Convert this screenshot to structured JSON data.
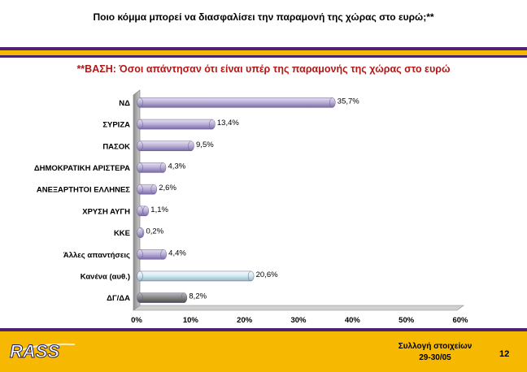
{
  "slide": {
    "title": "Ποιο κόμμα μπορεί να διασφαλίσει την παραμονή της χώρας στο ευρώ;**",
    "subtitle": "**ΒΑΣΗ: Όσοι απάντησαν ότι είναι υπέρ της παραμονής της χώρας στο ευρώ",
    "footer": {
      "logo_text": "RASS",
      "collection_label": "Συλλογή στοιχείων",
      "collection_dates": "29-30/05",
      "page_number": "12"
    },
    "colors": {
      "purple_band": "#4a2472",
      "yellow_band": "#f6b800",
      "subtitle_red": "#b01818"
    }
  },
  "chart_data": {
    "type": "bar",
    "orientation": "horizontal",
    "categories": [
      "ΝΔ",
      "ΣΥΡΙΖΑ",
      "ΠΑΣΟΚ",
      "ΔΗΜΟΚΡΑΤΙΚΗ ΑΡΙΣΤΕΡΑ",
      "ΑΝΕΞΑΡΤΗΤΟΙ ΕΛΛΗΝΕΣ",
      "ΧΡΥΣΗ ΑΥΓΗ",
      "ΚΚΕ",
      "Άλλες απαντήσεις",
      "Κανένα (αυθ.)",
      "ΔΓ/ΔΑ"
    ],
    "values": [
      35.7,
      13.4,
      9.5,
      4.3,
      2.6,
      1.1,
      0.2,
      4.4,
      20.6,
      8.2
    ],
    "value_labels": [
      "35,7%",
      "13,4%",
      "9,5%",
      "4,3%",
      "2,6%",
      "1,1%",
      "0,2%",
      "4,4%",
      "20,6%",
      "8,2%"
    ],
    "bar_colors": [
      "#bdb3d8",
      "#bdb3d8",
      "#bdb3d8",
      "#bdb3d8",
      "#bdb3d8",
      "#bdb3d8",
      "#bdb3d8",
      "#bdb3d8",
      "#d7ecf2",
      "#8a8a8a"
    ],
    "x_ticks": [
      "0%",
      "10%",
      "20%",
      "30%",
      "40%",
      "50%",
      "60%"
    ],
    "xlim": [
      0,
      60
    ],
    "grid": false,
    "legend": "none"
  }
}
